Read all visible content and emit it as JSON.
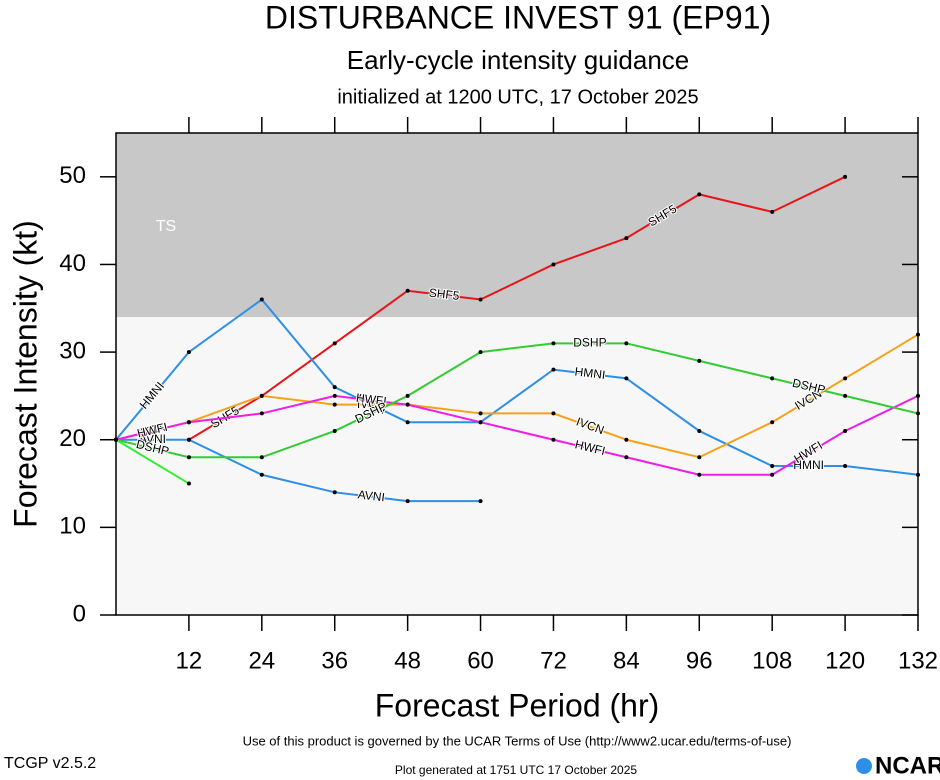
{
  "chart_data": {
    "type": "line",
    "title": "DISTURBANCE INVEST 91 (EP91)",
    "subtitle": "Early-cycle intensity guidance",
    "caption": "initialized at 1200 UTC, 17 October 2025",
    "x_label": "Forecast Period (hr)",
    "y_label": "Forecast Intensity (kt)",
    "xlim": [
      0,
      132
    ],
    "ylim": [
      0,
      55
    ],
    "xticks": [
      12,
      24,
      36,
      48,
      60,
      72,
      84,
      96,
      108,
      120,
      132
    ],
    "yticks": [
      0,
      10,
      20,
      30,
      40,
      50
    ],
    "band": {
      "label": "TS",
      "from": 34,
      "color": "#c8c8c8"
    },
    "series": [
      {
        "name": "SHF5",
        "color": "#e8141a",
        "x": [
          12,
          24,
          36,
          48,
          60,
          72,
          84,
          96,
          108,
          120
        ],
        "values": [
          20,
          25,
          31,
          37,
          36,
          40,
          43,
          48,
          46,
          50
        ]
      },
      {
        "name": "HMNI",
        "color": "#2e8fe6",
        "x": [
          0,
          12,
          24,
          36,
          48,
          60,
          72,
          84,
          96,
          108,
          120,
          132
        ],
        "values": [
          20,
          30,
          36,
          26,
          22,
          22,
          28,
          27,
          21,
          17,
          17,
          16
        ]
      },
      {
        "name": "AVNI",
        "color": "#2e8fe6",
        "x": [
          0,
          12,
          24,
          36,
          48,
          60
        ],
        "values": [
          20,
          20,
          16,
          14,
          13,
          13
        ]
      },
      {
        "name": "IVCN",
        "color": "#f5a21b",
        "x": [
          0,
          12,
          24,
          36,
          48,
          60,
          72,
          84,
          96,
          108,
          120,
          132
        ],
        "values": [
          20,
          22,
          25,
          24,
          24,
          23,
          23,
          20,
          18,
          22,
          27,
          32
        ]
      },
      {
        "name": "HWFI",
        "color": "#ee1ee6",
        "x": [
          0,
          12,
          24,
          36,
          48,
          60,
          72,
          84,
          96,
          108,
          120,
          132
        ],
        "values": [
          20,
          22,
          23,
          25,
          24,
          22,
          20,
          18,
          16,
          16,
          21,
          25
        ]
      },
      {
        "name": "DSHP",
        "color": "#33cc33",
        "x": [
          0,
          12,
          24,
          36,
          48,
          60,
          72,
          84,
          96,
          108,
          120,
          132
        ],
        "values": [
          20,
          18,
          18,
          21,
          25,
          30,
          31,
          31,
          29,
          27,
          25,
          23
        ]
      },
      {
        "color": "#33ee33",
        "x": [
          0,
          12
        ],
        "values": [
          20,
          15
        ]
      }
    ]
  },
  "footer": {
    "terms": "Use of this product is governed by the UCAR Terms of Use (http://www2.ucar.edu/terms-of-use)",
    "version": "TCGP v2.5.2",
    "generated": "Plot generated at 1751 UTC   17 October 2025",
    "logo": "NCAR"
  }
}
